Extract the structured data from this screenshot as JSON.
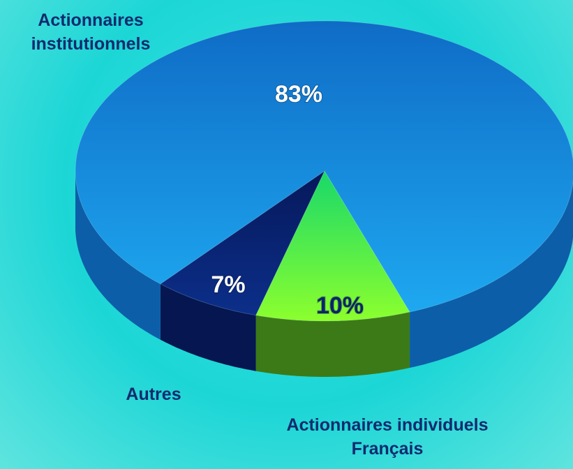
{
  "chart_data": {
    "type": "pie",
    "categories": [
      "Actionnaires institutionnels",
      "Actionnaires individuels Français",
      "Autres"
    ],
    "values": [
      83,
      10,
      7
    ],
    "value_labels": [
      "83%",
      "10%",
      "7%"
    ],
    "colors": [
      "#1b86dc",
      "#3fe84a",
      "#0b2470"
    ]
  }
}
